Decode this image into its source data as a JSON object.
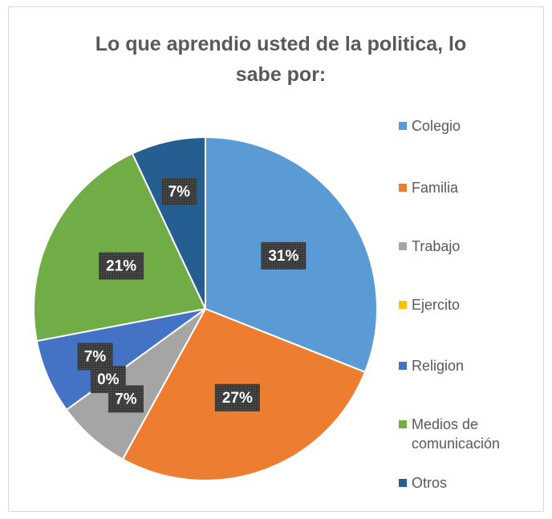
{
  "chart_data": {
    "type": "pie",
    "title": "Lo que aprendio usted de la politica, lo sabe por:",
    "categories": [
      "Colegio",
      "Familia",
      "Trabajo",
      "Ejercito",
      "Religion",
      "Medios de comunicación",
      "Otros"
    ],
    "values": [
      31,
      27,
      7,
      0,
      7,
      21,
      7
    ],
    "value_labels": [
      "31%",
      "27%",
      "7%",
      "0%",
      "7%",
      "21%",
      "7%"
    ],
    "colors": [
      "#5b9bd5",
      "#ed7d31",
      "#a5a5a5",
      "#ffc000",
      "#4472c4",
      "#70ad47",
      "#255e91"
    ],
    "legend": "right"
  }
}
